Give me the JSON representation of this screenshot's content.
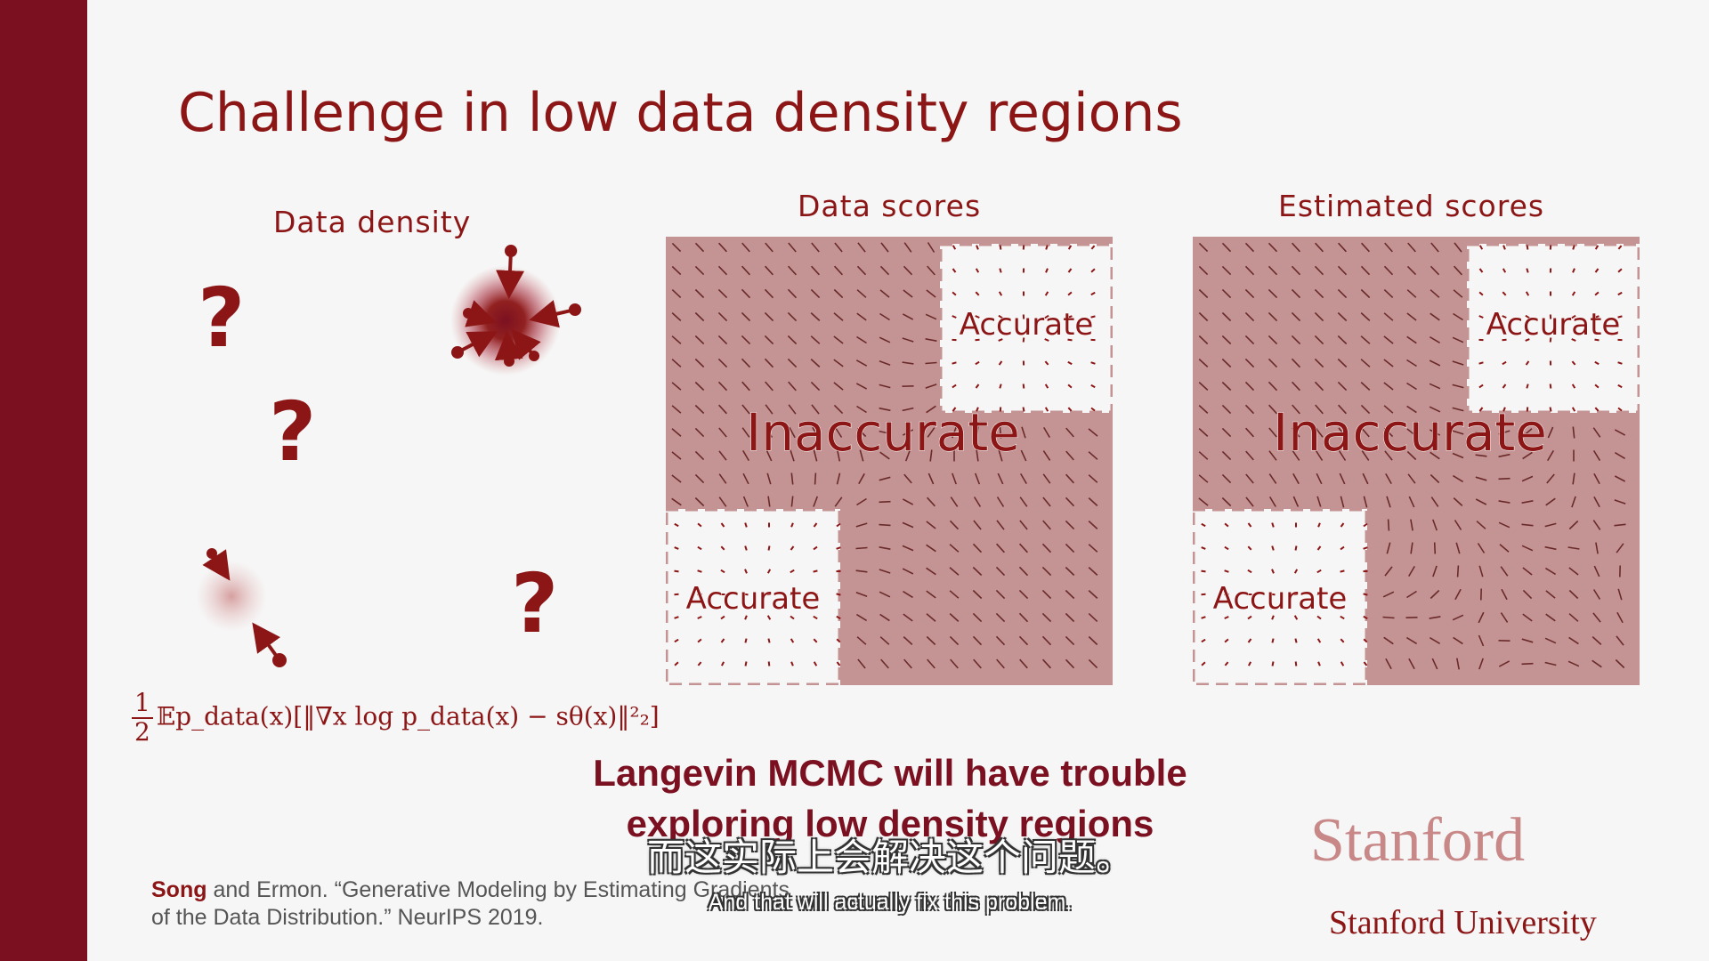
{
  "slide": {
    "title": "Challenge in low data density regions",
    "density_label": "Data density",
    "data_scores_label": "Data scores",
    "estimated_scores_label": "Estimated scores",
    "question_mark": "?",
    "accurate_label": "Accurate",
    "inaccurate_label": "Inaccurate",
    "formula": {
      "frac_num": "1",
      "frac_den": "2",
      "expression": "𝔼p_data(x)[‖∇x log p_data(x) − sθ(x)‖²₂]"
    },
    "headline_line1": "Langevin MCMC will have trouble",
    "headline_line2": "exploring low density regions",
    "citation_author": "Song",
    "citation_line1_rest": " and Ermon. “Generative Modeling by Estimating Gradients",
    "citation_line2": "of the Data Distribution.” NeurIPS 2019.",
    "logo_text": "Stanford",
    "university_text": "Stanford University"
  },
  "subtitles": {
    "zh": "而这实际上会解决这个问题。",
    "en": "And that will actually fix this problem."
  },
  "colors": {
    "brand": "#8c1515",
    "left_bar": "#7b1020",
    "inaccurate_fill": "#c49494",
    "background": "#f6f6f6"
  }
}
